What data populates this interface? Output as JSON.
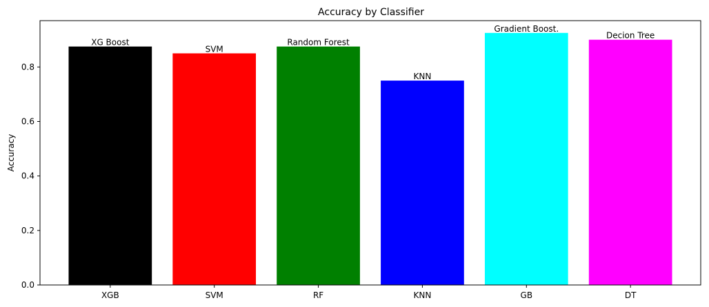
{
  "chart_data": {
    "type": "bar",
    "title": "Accuracy by Classifier",
    "xlabel": "",
    "ylabel": "Accuracy",
    "ylim": [
      0,
      0.97
    ],
    "yticks": [
      0.0,
      0.2,
      0.4,
      0.6,
      0.8
    ],
    "ytick_labels": [
      "0.0",
      "0.2",
      "0.4",
      "0.6",
      "0.8"
    ],
    "grid": false,
    "categories": [
      "XGB",
      "SVM",
      "RF",
      "KNN",
      "GB",
      "DT"
    ],
    "values": [
      0.875,
      0.85,
      0.875,
      0.75,
      0.925,
      0.9
    ],
    "bar_labels": [
      "XG Boost",
      "SVM",
      "Random Forest",
      "KNN",
      "Gradient Boost.",
      "Decion Tree"
    ],
    "colors": [
      "#000000",
      "#ff0000",
      "#008000",
      "#0000ff",
      "#00ffff",
      "#ff00ff"
    ]
  }
}
